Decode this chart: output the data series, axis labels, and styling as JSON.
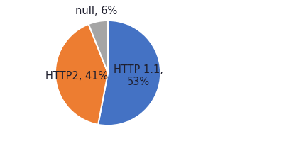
{
  "labels": [
    "HTTP 1.1,\n53%",
    "HTTP2, 41%",
    "null, 6%"
  ],
  "values": [
    53,
    41,
    6
  ],
  "colors": [
    "#4472c4",
    "#ed7d31",
    "#a5a5a5"
  ],
  "startangle": 90,
  "counterclock": false,
  "background_color": "#ffffff",
  "text_color": "#1f1f2e",
  "label_fontsize": 10.5,
  "edge_color": "white",
  "edge_linewidth": 1.5,
  "label_distances": [
    0.6,
    0.6,
    1.25
  ],
  "label_ha": [
    "center",
    "center",
    "center"
  ]
}
